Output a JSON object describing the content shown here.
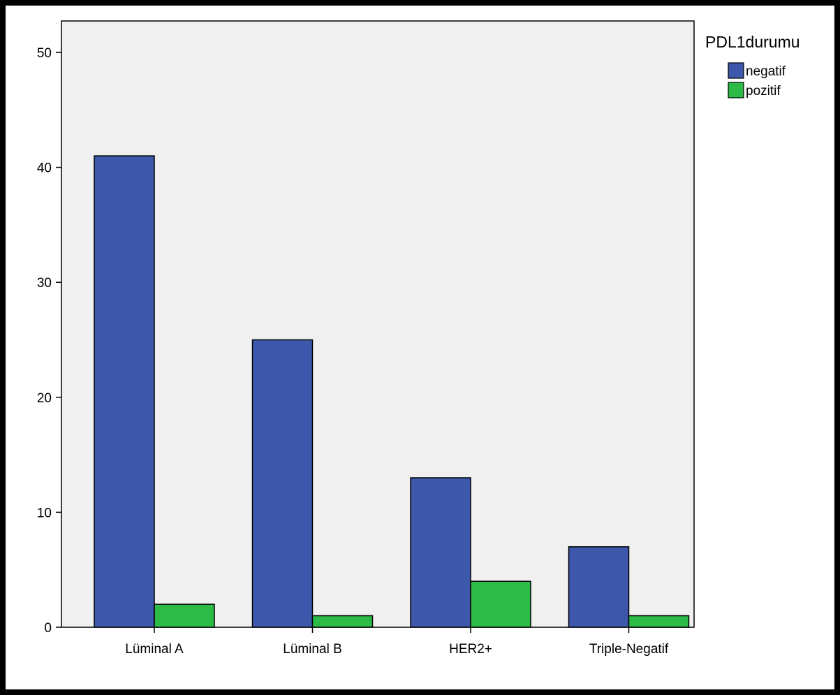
{
  "chart_data": {
    "type": "bar",
    "title": "",
    "xlabel": "",
    "ylabel": "",
    "categories": [
      "Lüminal A",
      "Lüminal B",
      "HER2+",
      "Triple-Negatif"
    ],
    "series": [
      {
        "name": "negatif",
        "values": [
          41,
          25,
          13,
          7
        ],
        "color": "#3d58ab"
      },
      {
        "name": "pozitif",
        "values": [
          2,
          1,
          4,
          1
        ],
        "color": "#2dbb48"
      }
    ],
    "ylim": [
      0,
      52
    ],
    "yticks": [
      0,
      10,
      20,
      30,
      40,
      50
    ],
    "grid": false,
    "legend": {
      "title": "PDL1durumu",
      "placement": "right"
    },
    "plot_background": "#f0f0f0"
  }
}
